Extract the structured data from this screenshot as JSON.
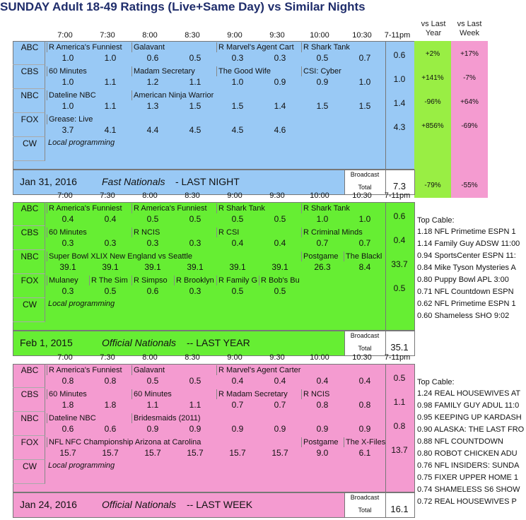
{
  "title": "SUNDAY Adult 18-49 Ratings (Live+Same Day) vs Similar Nights",
  "headers": {
    "vs_last_year": [
      "vs Last",
      "Year"
    ],
    "vs_last_week": [
      "vs Last",
      "Week"
    ]
  },
  "times": [
    "7:00",
    "7:30",
    "8:00",
    "8:30",
    "9:00",
    "9:30",
    "10:00",
    "10:30",
    "7-11pm"
  ],
  "colors": {
    "blue": "#99c9f5",
    "green": "#66ee33",
    "pink": "#f49bd0",
    "yellowgreen": "#99ee44"
  },
  "panel1": {
    "footer_date": "Jan 31, 2016",
    "footer_label": "Fast Nationals",
    "footer_suffix": "- LAST NIGHT",
    "broadcast_label": "Broadcast",
    "total_label": "Total",
    "total": "7.3",
    "total_vs_year": "-79%",
    "total_vs_week": "-55%",
    "rows": [
      {
        "net": "ABC",
        "progs": [
          [
            "R America's Funniest",
            0,
            2
          ],
          [
            "Galavant",
            2,
            2
          ],
          [
            "R Marvel's Agent Cart",
            4,
            2
          ],
          [
            "R Shark Tank",
            6,
            2
          ]
        ],
        "vals": [
          "1.0",
          "1.0",
          "0.6",
          "0.5",
          "0.3",
          "0.3",
          "0.5",
          "0.7"
        ],
        "tot": "0.6",
        "yr": "+2%",
        "wk": "+17%"
      },
      {
        "net": "CBS",
        "progs": [
          [
            "60 Minutes",
            0,
            2
          ],
          [
            "Madam Secretary",
            2,
            2
          ],
          [
            "The Good Wife",
            4,
            2
          ],
          [
            "CSI: Cyber",
            6,
            2
          ]
        ],
        "vals": [
          "1.0",
          "1.1",
          "1.2",
          "1.1",
          "1.0",
          "0.9",
          "0.9",
          "1.0"
        ],
        "tot": "1.0",
        "yr": "+141%",
        "wk": "-7%"
      },
      {
        "net": "NBC",
        "progs": [
          [
            "Dateline NBC",
            0,
            2
          ],
          [
            "American Ninja Warrior",
            2,
            2
          ]
        ],
        "vals": [
          "1.0",
          "1.1",
          "1.3",
          "1.5",
          "1.5",
          "1.4",
          "1.5",
          "1.5"
        ],
        "tot": "1.4",
        "yr": "-96%",
        "wk": "+64%"
      },
      {
        "net": "FOX",
        "progs": [
          [
            "Grease: Live",
            0,
            6
          ]
        ],
        "vals": [
          "3.7",
          "4.1",
          "4.4",
          "4.5",
          "4.5",
          "4.6",
          "",
          ""
        ],
        "tot": "4.3",
        "yr": "+856%",
        "wk": "-69%"
      },
      {
        "net": "CW",
        "local": "Local programming",
        "vals": [],
        "tot": "",
        "yr": "",
        "wk": ""
      }
    ]
  },
  "panel2": {
    "footer_date": "Feb 1, 2015",
    "footer_label": "Official Nationals",
    "footer_suffix": "-- LAST YEAR",
    "broadcast_label": "Broadcast",
    "total_label": "Total",
    "total": "35.1",
    "cable_header": "Top Cable:",
    "cable": [
      "1.18 NFL Primetime ESPN 1",
      "1.14 Family Guy ADSW 11:00",
      "0.94 SportsCenter ESPN 11:",
      "0.84 Mike Tyson Mysteries A",
      "0.80 Puppy Bowl APL 3:00",
      "0.71 NFL Countdown ESPN",
      "0.62 NFL Primetime ESPN 1",
      "0.60 Shameless SHO 9:02"
    ],
    "rows": [
      {
        "net": "ABC",
        "progs": [
          [
            "R America's Funniest",
            0,
            2
          ],
          [
            "R America's Funniest",
            2,
            2
          ],
          [
            "R Shark Tank",
            4,
            2
          ],
          [
            "R Shark Tank",
            6,
            2
          ]
        ],
        "vals": [
          "0.4",
          "0.4",
          "0.5",
          "0.5",
          "0.5",
          "0.5",
          "1.0",
          "1.0"
        ],
        "tot": "0.6"
      },
      {
        "net": "CBS",
        "progs": [
          [
            "60 Minutes",
            0,
            2
          ],
          [
            "R NCIS",
            2,
            2
          ],
          [
            "R CSI",
            4,
            2
          ],
          [
            "R Criminal Minds",
            6,
            2
          ]
        ],
        "vals": [
          "0.3",
          "0.3",
          "0.3",
          "0.3",
          "0.4",
          "0.4",
          "0.7",
          "0.7"
        ],
        "tot": "0.4"
      },
      {
        "net": "NBC",
        "progs": [
          [
            "Super Bowl XLIX New England vs Seattle",
            0,
            6
          ],
          [
            "Postgame",
            6,
            1
          ],
          [
            "The Blackl",
            7,
            1
          ]
        ],
        "vals": [
          "39.1",
          "39.1",
          "39.1",
          "39.1",
          "39.1",
          "39.1",
          "26.3",
          "8.4"
        ],
        "tot": "33.7"
      },
      {
        "net": "FOX",
        "progs": [
          [
            "Mulaney",
            0,
            1
          ],
          [
            "R The Sim",
            1,
            1
          ],
          [
            "R Simpso",
            2,
            1
          ],
          [
            "R Brooklyn",
            3,
            1
          ],
          [
            "R Family G",
            4,
            1
          ],
          [
            "R Bob's Bu",
            5,
            1
          ]
        ],
        "vals": [
          "0.3",
          "0.5",
          "0.6",
          "0.3",
          "0.5",
          "0.5",
          "",
          ""
        ],
        "tot": "0.5"
      },
      {
        "net": "CW",
        "local": "Local programming",
        "vals": [],
        "tot": ""
      }
    ]
  },
  "panel3": {
    "footer_date": "Jan 24, 2016",
    "footer_label": "Official Nationals",
    "footer_suffix": "-- LAST WEEK",
    "broadcast_label": "Broadcast",
    "total_label": "Total",
    "total": "16.1",
    "cable_header": "Top Cable:",
    "cable": [
      "1.24 REAL HOUSEWIVES AT",
      "0.98 FAMILY GUY ADUL 11:0",
      "0.95 KEEPING UP KARDASH",
      "0.90 ALASKA: THE LAST FRO",
      "0.88 NFL COUNTDOWN",
      "0.80 ROBOT CHICKEN ADU",
      "0.76 NFL INSIDERS: SUNDA",
      "0.75 FIXER UPPER HOME 1",
      "0.74 SHAMELESS S6 SHOW",
      "0.72 REAL HOUSEWIVES P"
    ],
    "rows": [
      {
        "net": "ABC",
        "progs": [
          [
            "R America's Funniest",
            0,
            2
          ],
          [
            "Galavant",
            2,
            2
          ],
          [
            "R Marvel's Agent Carter",
            4,
            4
          ]
        ],
        "vals": [
          "0.8",
          "0.8",
          "0.5",
          "0.5",
          "0.4",
          "0.4",
          "0.4",
          "0.4"
        ],
        "tot": "0.5"
      },
      {
        "net": "CBS",
        "progs": [
          [
            "60 Minutes",
            0,
            2
          ],
          [
            "60 Minutes",
            2,
            2
          ],
          [
            "R Madam Secretary",
            4,
            2
          ],
          [
            "R NCIS",
            6,
            2
          ]
        ],
        "vals": [
          "1.8",
          "1.8",
          "1.1",
          "1.1",
          "0.7",
          "0.7",
          "0.8",
          "0.8"
        ],
        "tot": "1.1"
      },
      {
        "net": "NBC",
        "progs": [
          [
            "Dateline NBC",
            0,
            2
          ],
          [
            "Bridesmaids (2011)",
            2,
            6
          ]
        ],
        "vals": [
          "0.6",
          "0.6",
          "0.9",
          "0.9",
          "0.9",
          "0.9",
          "0.9",
          "0.9"
        ],
        "tot": "0.8"
      },
      {
        "net": "FOX",
        "progs": [
          [
            "NFL NFC Championship Arizona at Carolina",
            0,
            6
          ],
          [
            "Postgame",
            6,
            1
          ],
          [
            "The X-Files",
            7,
            1
          ]
        ],
        "vals": [
          "15.7",
          "15.7",
          "15.7",
          "15.7",
          "15.7",
          "15.7",
          "9.0",
          "6.1"
        ],
        "tot": "13.7"
      },
      {
        "net": "CW",
        "local": "Local programming",
        "vals": [],
        "tot": ""
      }
    ]
  }
}
